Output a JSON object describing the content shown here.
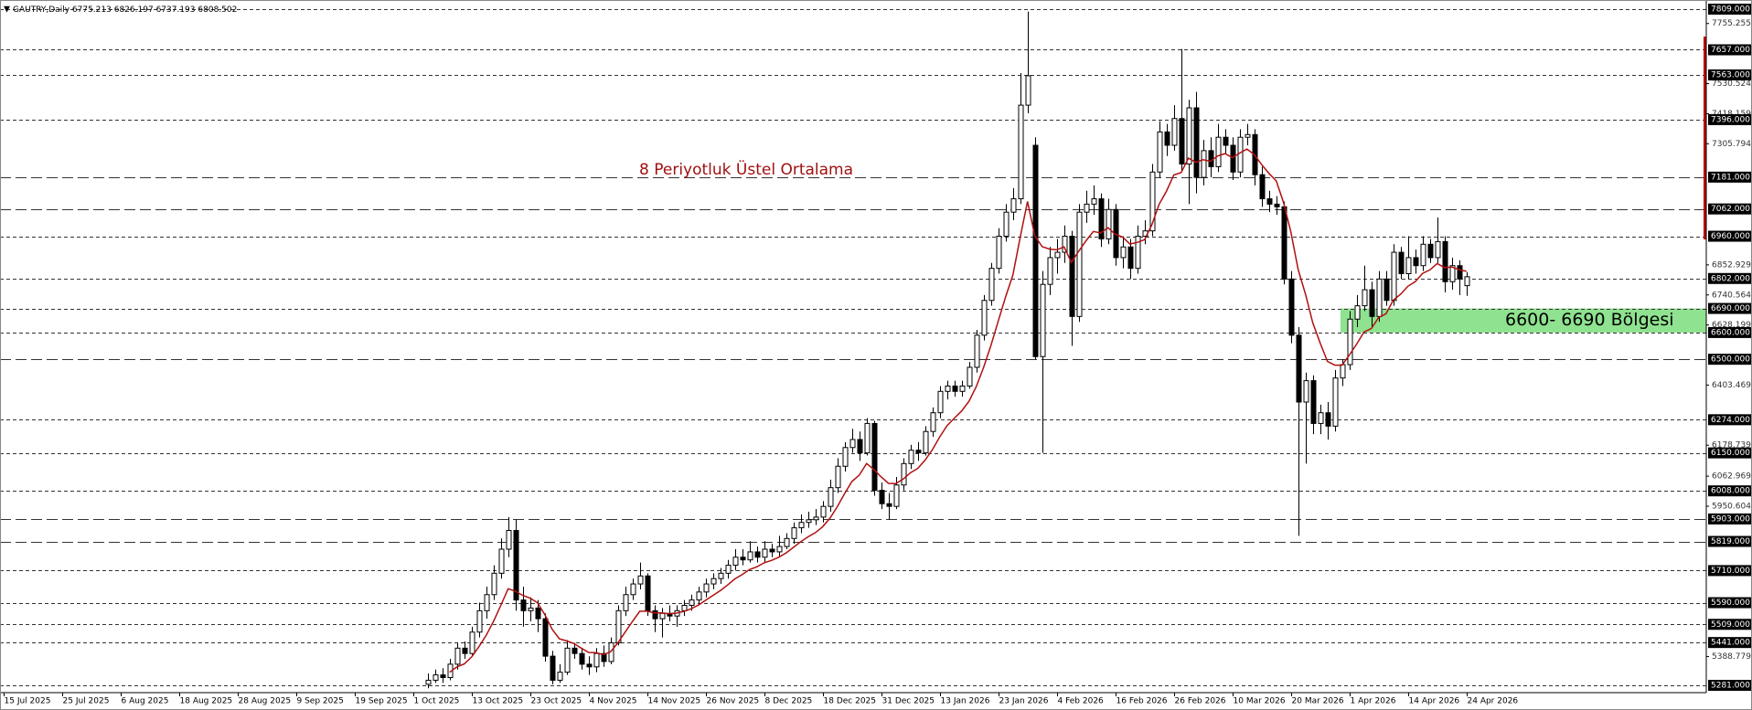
{
  "chart_data": {
    "type": "candlestick",
    "symbol": "GAUTRY,Daily",
    "annotation": {
      "text": "8 Periyotluk Üstel Ortalama",
      "color": "#a01010"
    },
    "zone": {
      "from": 6600,
      "to": 6690,
      "label": "6600- 6690 Bölgesi",
      "color": "#8fe28f"
    },
    "ema_color": "#b01010",
    "bull_color": "#ffffff",
    "bear_color": "#000000",
    "ylim": [
      5281,
      7809
    ],
    "yticks": [
      {
        "value": 7755.255,
        "label": "7755.255"
      },
      {
        "value": 7530.524,
        "label": "7530.524"
      },
      {
        "value": 7418.159,
        "label": "7418.159"
      },
      {
        "value": 7305.794,
        "label": "7305.794"
      },
      {
        "value": 6852.929,
        "label": "6852.929"
      },
      {
        "value": 6740.564,
        "label": "6740.564"
      },
      {
        "value": 6628.199,
        "label": "6628.199"
      },
      {
        "value": 6403.469,
        "label": "6403.469"
      },
      {
        "value": 6178.739,
        "label": "6178.739"
      },
      {
        "value": 6062.969,
        "label": "6062.969"
      },
      {
        "value": 5950.604,
        "label": "5950.604"
      },
      {
        "value": 5388.779,
        "label": "5388.779"
      }
    ],
    "levels": [
      {
        "value": 7809,
        "label": "7809.000",
        "dash": "short"
      },
      {
        "value": 7657,
        "label": "7657.000",
        "dash": "short"
      },
      {
        "value": 7563,
        "label": "7563.000",
        "dash": "short"
      },
      {
        "value": 7396,
        "label": "7396.000",
        "dash": "short"
      },
      {
        "value": 7181,
        "label": "7181.000",
        "dash": "long"
      },
      {
        "value": 7062,
        "label": "7062.000",
        "dash": "long"
      },
      {
        "value": 6960,
        "label": "6960.000",
        "dash": "short"
      },
      {
        "value": 6802,
        "label": "6802.000",
        "dash": "short"
      },
      {
        "value": 6690,
        "label": "6690.000",
        "dash": "short"
      },
      {
        "value": 6600,
        "label": "6600.000",
        "dash": "short"
      },
      {
        "value": 6500,
        "label": "6500.000",
        "dash": "long"
      },
      {
        "value": 6274,
        "label": "6274.000",
        "dash": "short"
      },
      {
        "value": 6150,
        "label": "6150.000",
        "dash": "short"
      },
      {
        "value": 6008,
        "label": "6008.000",
        "dash": "short"
      },
      {
        "value": 5903,
        "label": "5903.000",
        "dash": "long"
      },
      {
        "value": 5819,
        "label": "5819.000",
        "dash": "long"
      },
      {
        "value": 5710,
        "label": "5710.000",
        "dash": "short"
      },
      {
        "value": 5590,
        "label": "5590.000",
        "dash": "short"
      },
      {
        "value": 5509,
        "label": "5509.000",
        "dash": "short"
      },
      {
        "value": 5441,
        "label": "5441.000",
        "dash": "short"
      },
      {
        "value": 5281,
        "label": "5281.000",
        "dash": "short"
      }
    ],
    "categories": [
      "15 Jul 2025",
      null,
      null,
      null,
      null,
      null,
      null,
      null,
      "25 Jul 2025",
      null,
      null,
      null,
      null,
      null,
      null,
      null,
      "6 Aug 2025",
      null,
      null,
      null,
      null,
      null,
      null,
      null,
      "18 Aug 2025",
      null,
      null,
      null,
      null,
      null,
      null,
      null,
      "28 Aug 2025",
      null,
      null,
      null,
      null,
      null,
      null,
      null,
      "9 Sep 2025",
      null,
      null,
      null,
      null,
      null,
      null,
      null,
      "19 Sep 2025",
      null,
      null,
      null,
      null,
      null,
      null,
      null,
      "1 Oct 2025",
      null,
      null,
      null,
      null,
      null,
      null,
      null,
      "13 Oct 2025",
      null,
      null,
      null,
      null,
      null,
      null,
      null,
      "23 Oct 2025",
      null,
      null,
      null,
      null,
      null,
      null,
      null,
      "4 Nov 2025",
      null,
      null,
      null,
      null,
      null,
      null,
      null,
      "14 Nov 2025",
      null,
      null,
      null,
      null,
      null,
      null,
      null,
      "26 Nov 2025",
      null,
      null,
      null,
      null,
      null,
      null,
      null,
      "8 Dec 2025",
      null,
      null,
      null,
      null,
      null,
      null,
      null,
      "18 Dec 2025",
      null,
      null,
      null,
      null,
      null,
      null,
      null,
      "31 Dec 2025",
      null,
      null,
      null,
      null,
      null,
      null,
      null,
      "13 Jan 2026",
      null,
      null,
      null,
      null,
      null,
      null,
      null,
      "23 Jan 2026",
      null,
      null,
      null,
      null,
      null,
      null,
      null,
      "4 Feb 2026",
      null,
      null,
      null,
      null,
      null,
      null,
      null,
      "16 Feb 2026",
      null,
      null,
      null,
      null,
      null,
      null,
      null,
      "26 Feb 2026",
      null,
      null,
      null,
      null,
      null,
      null,
      null,
      "10 Mar 2026",
      null,
      null,
      null,
      null,
      null,
      null,
      null,
      "20 Mar 2026",
      null,
      null,
      null,
      null,
      null,
      null,
      null,
      "1 Apr 2026",
      null,
      null,
      null,
      null,
      null,
      null,
      null,
      "14 Apr 2026",
      null,
      null,
      null,
      null,
      null,
      null,
      null,
      "24 Apr 2026"
    ],
    "ohlc": [
      null,
      null,
      null,
      null,
      null,
      null,
      null,
      null,
      null,
      null,
      null,
      null,
      null,
      null,
      null,
      null,
      null,
      null,
      null,
      null,
      null,
      null,
      null,
      null,
      null,
      null,
      null,
      null,
      null,
      null,
      null,
      null,
      null,
      null,
      null,
      null,
      null,
      null,
      null,
      null,
      null,
      null,
      null,
      null,
      null,
      null,
      null,
      null,
      null,
      null,
      null,
      null,
      null,
      null,
      null,
      null,
      null,
      null,
      [
        5285,
        5325,
        5270,
        5300
      ],
      [
        5300,
        5340,
        5290,
        5320
      ],
      [
        5320,
        5345,
        5290,
        5310
      ],
      [
        5310,
        5380,
        5300,
        5360
      ],
      [
        5360,
        5440,
        5340,
        5420
      ],
      [
        5420,
        5445,
        5380,
        5400
      ],
      [
        5400,
        5500,
        5390,
        5480
      ],
      [
        5480,
        5590,
        5460,
        5560
      ],
      [
        5560,
        5650,
        5530,
        5620
      ],
      [
        5620,
        5730,
        5600,
        5700
      ],
      [
        5700,
        5830,
        5680,
        5790
      ],
      [
        5790,
        5910,
        5760,
        5860
      ],
      [
        5860,
        5900,
        5560,
        5600
      ],
      [
        5600,
        5650,
        5500,
        5560
      ],
      [
        5560,
        5610,
        5520,
        5570
      ],
      [
        5570,
        5600,
        5480,
        5530
      ],
      [
        5530,
        5550,
        5370,
        5390
      ],
      [
        5390,
        5410,
        5285,
        5300
      ],
      [
        5300,
        5360,
        5290,
        5330
      ],
      [
        5330,
        5450,
        5320,
        5420
      ],
      [
        5420,
        5440,
        5380,
        5400
      ],
      [
        5400,
        5420,
        5340,
        5360
      ],
      [
        5360,
        5390,
        5320,
        5350
      ],
      [
        5350,
        5420,
        5330,
        5400
      ],
      [
        5400,
        5430,
        5350,
        5370
      ],
      [
        5370,
        5460,
        5360,
        5440
      ],
      [
        5440,
        5580,
        5430,
        5560
      ],
      [
        5560,
        5650,
        5540,
        5620
      ],
      [
        5620,
        5680,
        5600,
        5660
      ],
      [
        5660,
        5740,
        5640,
        5690
      ],
      [
        5690,
        5700,
        5540,
        5560
      ],
      [
        5560,
        5580,
        5480,
        5530
      ],
      [
        5530,
        5570,
        5460,
        5550
      ],
      [
        5550,
        5580,
        5520,
        5540
      ],
      [
        5540,
        5580,
        5500,
        5560
      ],
      [
        5560,
        5600,
        5540,
        5580
      ],
      [
        5580,
        5620,
        5560,
        5600
      ],
      [
        5600,
        5650,
        5580,
        5630
      ],
      [
        5630,
        5680,
        5610,
        5660
      ],
      [
        5660,
        5700,
        5640,
        5680
      ],
      [
        5680,
        5720,
        5660,
        5700
      ],
      [
        5700,
        5750,
        5680,
        5730
      ],
      [
        5730,
        5790,
        5710,
        5760
      ],
      [
        5760,
        5790,
        5730,
        5750
      ],
      [
        5750,
        5820,
        5740,
        5780
      ],
      [
        5780,
        5800,
        5740,
        5760
      ],
      [
        5760,
        5820,
        5740,
        5790
      ],
      [
        5790,
        5810,
        5760,
        5780
      ],
      [
        5780,
        5840,
        5760,
        5800
      ],
      [
        5800,
        5850,
        5790,
        5830
      ],
      [
        5830,
        5890,
        5810,
        5870
      ],
      [
        5870,
        5920,
        5850,
        5890
      ],
      [
        5890,
        5930,
        5870,
        5900
      ],
      [
        5900,
        5940,
        5880,
        5910
      ],
      [
        5910,
        5970,
        5890,
        5950
      ],
      [
        5950,
        6050,
        5930,
        6020
      ],
      [
        6020,
        6130,
        6000,
        6100
      ],
      [
        6100,
        6190,
        6080,
        6170
      ],
      [
        6170,
        6240,
        6150,
        6200
      ],
      [
        6200,
        6230,
        6120,
        6150
      ],
      [
        6150,
        6280,
        6140,
        6260
      ],
      [
        6260,
        6270,
        5990,
        6010
      ],
      [
        6010,
        6040,
        5940,
        5960
      ],
      [
        5960,
        6000,
        5900,
        5950
      ],
      [
        5950,
        6060,
        5940,
        6030
      ],
      [
        6030,
        6130,
        6010,
        6110
      ],
      [
        6110,
        6180,
        6090,
        6160
      ],
      [
        6160,
        6190,
        6120,
        6150
      ],
      [
        6150,
        6250,
        6140,
        6230
      ],
      [
        6230,
        6320,
        6210,
        6300
      ],
      [
        6300,
        6400,
        6280,
        6380
      ],
      [
        6380,
        6420,
        6350,
        6400
      ],
      [
        6400,
        6420,
        6360,
        6380
      ],
      [
        6380,
        6420,
        6360,
        6400
      ],
      [
        6400,
        6490,
        6390,
        6470
      ],
      [
        6470,
        6610,
        6450,
        6590
      ],
      [
        6590,
        6740,
        6570,
        6720
      ],
      [
        6720,
        6860,
        6700,
        6840
      ],
      [
        6840,
        6990,
        6820,
        6960
      ],
      [
        6960,
        7080,
        6940,
        7050
      ],
      [
        7050,
        7140,
        7020,
        7100
      ],
      [
        7100,
        7570,
        7080,
        7450
      ],
      [
        7450,
        7800,
        7420,
        7560
      ],
      [
        7300,
        7330,
        6500,
        6510
      ],
      [
        6510,
        6830,
        6150,
        6780
      ],
      [
        6780,
        6920,
        6740,
        6880
      ],
      [
        6880,
        6950,
        6820,
        6900
      ],
      [
        6900,
        7000,
        6860,
        6960
      ],
      [
        6960,
        6980,
        6550,
        6660
      ],
      [
        6660,
        7080,
        6640,
        7050
      ],
      [
        7050,
        7130,
        7010,
        7080
      ],
      [
        7080,
        7150,
        7040,
        7100
      ],
      [
        7100,
        7120,
        6920,
        6950
      ],
      [
        6950,
        7100,
        6930,
        7060
      ],
      [
        7060,
        7080,
        6850,
        6880
      ],
      [
        6880,
        6960,
        6840,
        6920
      ],
      [
        6920,
        6950,
        6800,
        6840
      ],
      [
        6840,
        7000,
        6820,
        6960
      ],
      [
        6960,
        7020,
        6930,
        6980
      ],
      [
        6980,
        7230,
        6960,
        7200
      ],
      [
        7200,
        7390,
        7180,
        7350
      ],
      [
        7350,
        7380,
        7260,
        7300
      ],
      [
        7300,
        7450,
        7280,
        7400
      ],
      [
        7400,
        7660,
        7200,
        7230
      ],
      [
        7230,
        7470,
        7080,
        7440
      ],
      [
        7440,
        7500,
        7120,
        7180
      ],
      [
        7180,
        7320,
        7150,
        7280
      ],
      [
        7280,
        7330,
        7180,
        7220
      ],
      [
        7220,
        7380,
        7200,
        7330
      ],
      [
        7330,
        7360,
        7270,
        7300
      ],
      [
        7300,
        7330,
        7170,
        7200
      ],
      [
        7200,
        7360,
        7180,
        7330
      ],
      [
        7330,
        7380,
        7300,
        7340
      ],
      [
        7340,
        7360,
        7150,
        7190
      ],
      [
        7190,
        7220,
        7070,
        7100
      ],
      [
        7100,
        7130,
        7050,
        7080
      ],
      [
        7080,
        7110,
        7040,
        7070
      ],
      [
        7070,
        7090,
        6780,
        6800
      ],
      [
        6800,
        6830,
        6560,
        6590
      ],
      [
        6590,
        6620,
        5840,
        6340
      ],
      [
        6340,
        6450,
        6110,
        6420
      ],
      [
        6420,
        6440,
        6220,
        6260
      ],
      [
        6260,
        6330,
        6220,
        6300
      ],
      [
        6300,
        6340,
        6200,
        6250
      ],
      [
        6250,
        6460,
        6230,
        6430
      ],
      [
        6430,
        6500,
        6400,
        6480
      ],
      [
        6480,
        6680,
        6460,
        6650
      ],
      [
        6650,
        6740,
        6620,
        6700
      ],
      [
        6700,
        6850,
        6680,
        6760
      ],
      [
        6760,
        6790,
        6620,
        6660
      ],
      [
        6660,
        6830,
        6640,
        6800
      ],
      [
        6800,
        6830,
        6700,
        6720
      ],
      [
        6720,
        6930,
        6700,
        6900
      ],
      [
        6900,
        6920,
        6800,
        6820
      ],
      [
        6820,
        6960,
        6800,
        6880
      ],
      [
        6880,
        6910,
        6820,
        6850
      ],
      [
        6850,
        6960,
        6830,
        6930
      ],
      [
        6930,
        6950,
        6860,
        6880
      ],
      [
        6880,
        7030,
        6860,
        6940
      ],
      [
        6940,
        6960,
        6750,
        6790
      ],
      [
        6790,
        6880,
        6760,
        6850
      ],
      [
        6850,
        6870,
        6740,
        6800
      ],
      [
        6775.213,
        6826.197,
        6737.193,
        6808.502
      ]
    ],
    "ema": [
      null,
      null,
      null,
      null,
      null,
      null,
      null,
      null,
      null,
      null,
      null,
      null,
      null,
      null,
      null,
      null,
      null,
      null,
      null,
      null,
      null,
      null,
      null,
      null,
      null,
      null,
      null,
      null,
      null,
      null,
      null,
      null,
      null,
      null,
      null,
      null,
      null,
      null,
      null,
      null,
      null,
      null,
      null,
      null,
      null,
      null,
      null,
      null,
      null,
      null,
      null,
      null,
      null,
      null,
      null,
      null,
      null,
      null,
      null,
      null,
      null,
      5330,
      5350,
      5361,
      5387,
      5425,
      5468,
      5520,
      5580,
      5642,
      5633,
      5617,
      5607,
      5590,
      5546,
      5491,
      5455,
      5447,
      5437,
      5420,
      5404,
      5403,
      5396,
      5406,
      5440,
      5480,
      5520,
      5558,
      5558,
      5552,
      5552,
      5549,
      5551,
      5557,
      5567,
      5581,
      5599,
      5617,
      5635,
      5656,
      5679,
      5695,
      5714,
      5724,
      5739,
      5748,
      5760,
      5776,
      5797,
      5818,
      5836,
      5852,
      5874,
      5906,
      5949,
      5998,
      6043,
      6067,
      6110,
      6088,
      6060,
      6036,
      6035,
      6052,
      6076,
      6092,
      6123,
      6162,
      6210,
      6252,
      6280,
      6307,
      6343,
      6398,
      6470,
      6552,
      6643,
      6733,
      6815,
      6956,
      7090,
      6961,
      6921,
      6912,
      6909,
      6920,
      6862,
      6904,
      6943,
      6978,
      6972,
      6992,
      6967,
      6957,
      6931,
      6937,
      6947,
      7003,
      7080,
      7129,
      7189,
      7198,
      7252,
      7236,
      7246,
      7240,
      7260,
      7269,
      7254,
      7271,
      7286,
      7265,
      7228,
      7195,
      7167,
      7086,
      6976,
      6835,
      6743,
      6636,
      6561,
      6492,
      6478,
      6478,
      6516,
      6557,
      6602,
      6615,
      6656,
      6670,
      6721,
      6743,
      6773,
      6790,
      6821,
      6834,
      6858,
      6843,
      6845,
      6835,
      6829
    ]
  }
}
